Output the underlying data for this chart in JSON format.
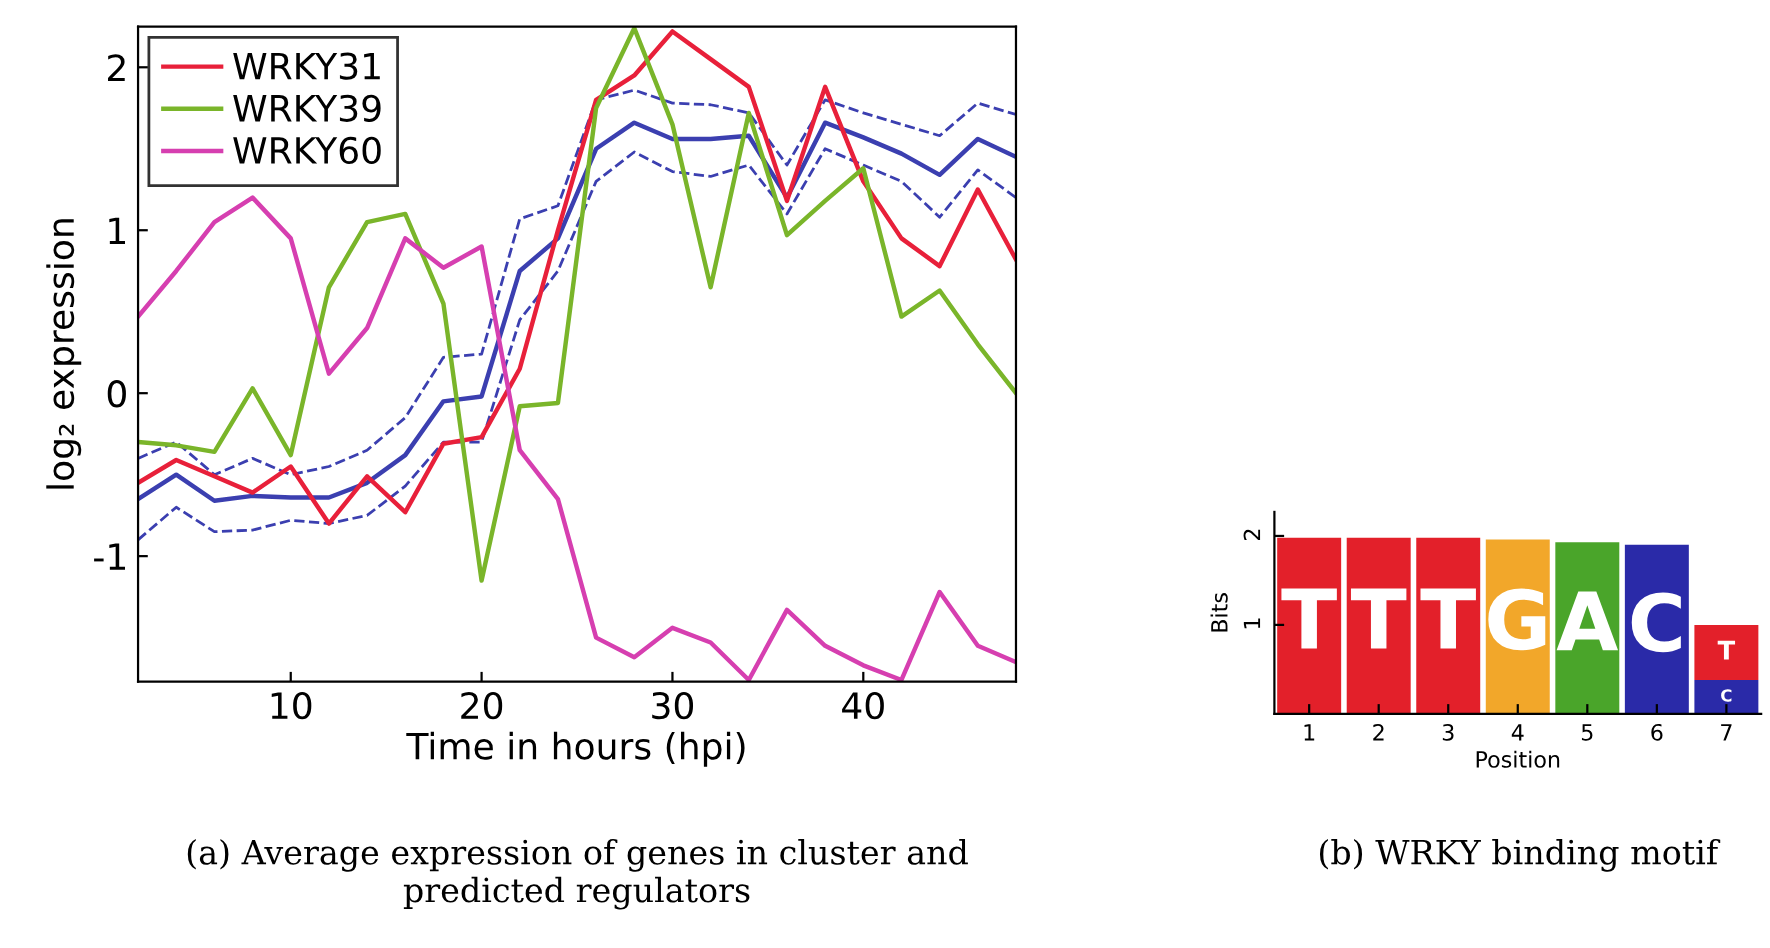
{
  "chart_data": [
    {
      "type": "line",
      "xlabel": "Time in hours (hpi)",
      "ylabel": "log₂ expression",
      "x": [
        2,
        4,
        6,
        8,
        10,
        12,
        14,
        16,
        18,
        20,
        22,
        24,
        26,
        28,
        30,
        32,
        34,
        36,
        38,
        40,
        42,
        44,
        46,
        48
      ],
      "xlim": [
        2,
        48
      ],
      "ylim": [
        -1.77,
        2.25
      ],
      "xticks": [
        10,
        20,
        30,
        40
      ],
      "yticks": [
        -1,
        0,
        1,
        2
      ],
      "grid": false,
      "legend": "top left",
      "series": [
        {
          "color": "#3b3fb0",
          "values": [
            -0.65,
            -0.5,
            -0.66,
            -0.63,
            -0.64,
            -0.64,
            -0.55,
            -0.38,
            -0.05,
            -0.02,
            0.75,
            0.95,
            1.5,
            1.66,
            1.56,
            1.56,
            1.58,
            1.2,
            1.66,
            1.57,
            1.47,
            1.34,
            1.56,
            1.45
          ]
        },
        {
          "color": "#3b3fb0",
          "line_style": "dashed",
          "values": [
            -0.4,
            -0.3,
            -0.5,
            -0.4,
            -0.5,
            -0.45,
            -0.35,
            -0.15,
            0.22,
            0.24,
            1.07,
            1.15,
            1.8,
            1.86,
            1.78,
            1.77,
            1.72,
            1.4,
            1.8,
            1.72,
            1.65,
            1.58,
            1.78,
            1.71
          ]
        },
        {
          "color": "#3b3fb0",
          "line_style": "dashed",
          "values": [
            -0.9,
            -0.7,
            -0.85,
            -0.84,
            -0.78,
            -0.8,
            -0.75,
            -0.57,
            -0.3,
            -0.3,
            0.45,
            0.75,
            1.3,
            1.48,
            1.36,
            1.33,
            1.4,
            1.1,
            1.5,
            1.4,
            1.3,
            1.08,
            1.37,
            1.2
          ]
        },
        {
          "name": "WRKY31",
          "color": "#e8203a",
          "values": [
            -0.55,
            -0.41,
            -0.51,
            -0.61,
            -0.45,
            -0.8,
            -0.51,
            -0.73,
            -0.31,
            -0.27,
            0.15,
            1.0,
            1.8,
            1.95,
            2.22,
            2.05,
            1.88,
            1.18,
            1.88,
            1.3,
            0.95,
            0.78,
            1.25,
            0.82
          ]
        },
        {
          "name": "WRKY39",
          "color": "#7ab52a",
          "values": [
            -0.3,
            -0.32,
            -0.36,
            0.03,
            -0.38,
            0.65,
            1.05,
            1.1,
            0.55,
            -1.15,
            -0.08,
            -0.06,
            1.75,
            2.24,
            1.65,
            0.65,
            1.72,
            0.97,
            1.18,
            1.38,
            0.47,
            0.63,
            0.3,
            0.0
          ]
        },
        {
          "name": "WRKY60",
          "color": "#d63fb0",
          "values": [
            0.47,
            0.75,
            1.05,
            1.2,
            0.95,
            0.12,
            0.4,
            0.95,
            0.77,
            0.9,
            -0.35,
            -0.65,
            -1.5,
            -1.62,
            -1.44,
            -1.53,
            -1.76,
            -1.33,
            -1.55,
            -1.67,
            -1.76,
            -1.22,
            -1.55,
            -1.65
          ]
        }
      ],
      "annotations": [
        "(a) Average expression of genes in cluster and predicted regulators"
      ]
    },
    {
      "type": "bar",
      "stacked": true,
      "xlabel": "Position",
      "ylabel": "Bits",
      "categories": [
        "1",
        "2",
        "3",
        "4",
        "5",
        "6",
        "7"
      ],
      "ylim": [
        0,
        2.27
      ],
      "yticks": [
        1,
        2
      ],
      "series": [
        {
          "name": "C",
          "color": "#2a2aa8",
          "values": [
            null,
            null,
            null,
            null,
            null,
            1.9,
            0.38
          ]
        },
        {
          "name": "T",
          "color": "#e3202a",
          "values": [
            1.98,
            1.98,
            1.98,
            null,
            null,
            null,
            0.62
          ]
        },
        {
          "name": "G",
          "color": "#f2a72a",
          "values": [
            null,
            null,
            null,
            1.96,
            null,
            null,
            null
          ]
        },
        {
          "name": "A",
          "color": "#4aa52a",
          "values": [
            null,
            null,
            null,
            null,
            1.93,
            null,
            null
          ]
        }
      ],
      "annotations": [
        "(b) WRKY binding motif"
      ]
    }
  ]
}
